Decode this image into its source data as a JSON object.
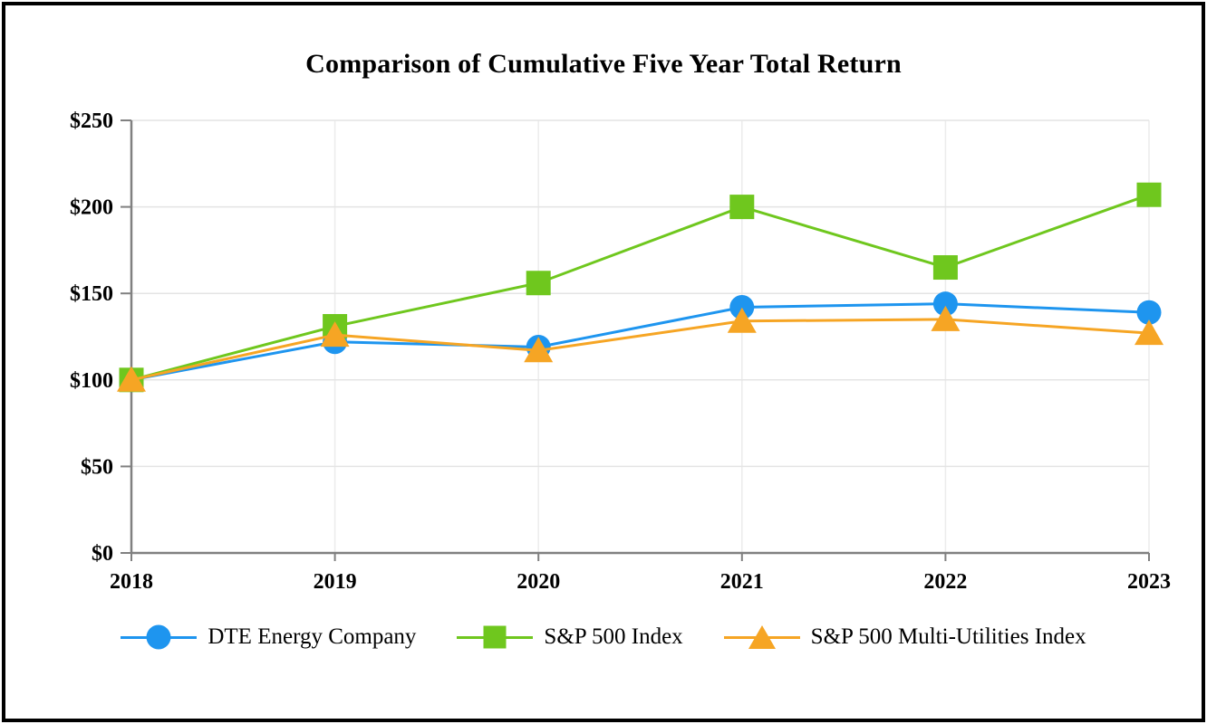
{
  "chart_data": {
    "type": "line",
    "title": "Comparison of Cumulative Five Year Total Return",
    "categories": [
      "2018",
      "2019",
      "2020",
      "2021",
      "2022",
      "2023"
    ],
    "series": [
      {
        "name": "DTE Energy Company",
        "marker": "circle",
        "color": "#1E95EF",
        "values": [
          100,
          122,
          119,
          142,
          144,
          139
        ]
      },
      {
        "name": "S&P 500 Index",
        "marker": "square",
        "color": "#6FC71E",
        "values": [
          100,
          131,
          156,
          200,
          165,
          207
        ]
      },
      {
        "name": "S&P 500 Multi-Utilities Index",
        "marker": "triangle",
        "color": "#F6A524",
        "values": [
          100,
          126,
          117,
          134,
          135,
          127
        ]
      }
    ],
    "ylim": [
      0,
      250
    ],
    "ytick_step": 50,
    "ytick_labels": [
      "$0",
      "$50",
      "$100",
      "$150",
      "$200",
      "$250"
    ],
    "grid": true,
    "legend_position": "bottom",
    "colors": {
      "axis": "#808080",
      "h_gridline": "#E4E4E4",
      "v_gridline": "#ECECEC",
      "text": "#000000"
    }
  }
}
